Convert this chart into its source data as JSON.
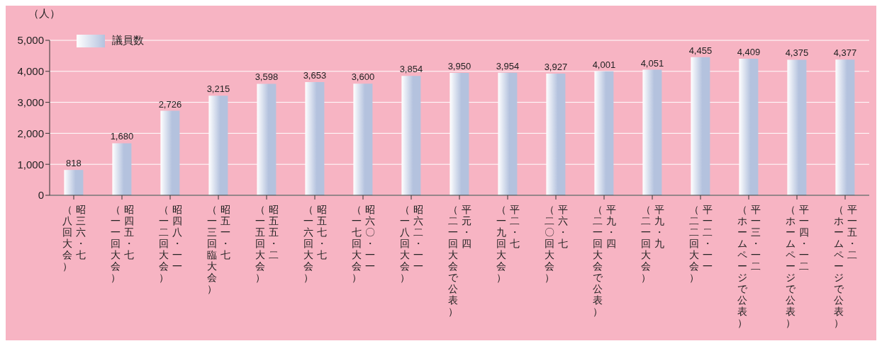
{
  "chart_data": {
    "type": "bar",
    "ylabel": "（人）",
    "categories": [
      "昭三六・七（八回大会）",
      "昭四五・七（一一回大会）",
      "昭四八・一一（一二回大会）",
      "昭五一・七（一三回臨大会）",
      "昭五五・二（一五回大会）",
      "昭五七・七（一六回大会）",
      "昭六〇・一一（一七回大会）",
      "昭六二・一一（一八回大会）",
      "平元・四（二一回大会で公表）",
      "平二・七（一九回大会）",
      "平六・七（二〇回大会）",
      "平九・四（二一回大会で公表）",
      "平九・九（二一回大会）",
      "平一二・一一（二二回大会）",
      "平一三・一二（ホームページで公表）",
      "平一四・一二（ホームページで公表）",
      "平一五・二（ホームページで公表）"
    ],
    "series": [
      {
        "name": "議員数",
        "color": "#b4c2de",
        "values": [
          818,
          1680,
          2726,
          3215,
          3598,
          3653,
          3600,
          3854,
          3950,
          3954,
          3927,
          4001,
          4051,
          4455,
          4409,
          4375,
          4377
        ],
        "value_labels": [
          "818",
          "1,680",
          "2,726",
          "3,215",
          "3,598",
          "3,653",
          "3,600",
          "3,854",
          "3,950",
          "3,954",
          "3,927",
          "4,001",
          "4,051",
          "4,455",
          "4,409",
          "4,375",
          "4,377"
        ]
      }
    ],
    "ylim": [
      0,
      5000
    ],
    "yticks": [
      0,
      {
        "value": 1000,
        "label": "1,000"
      },
      {
        "value": 2000,
        "label": "2,000"
      },
      {
        "value": 3000,
        "label": "3,000"
      },
      {
        "value": 4000,
        "label": "4,000"
      },
      {
        "value": 5000,
        "label": "5,000"
      }
    ],
    "grid": "y",
    "legend": "top left"
  }
}
